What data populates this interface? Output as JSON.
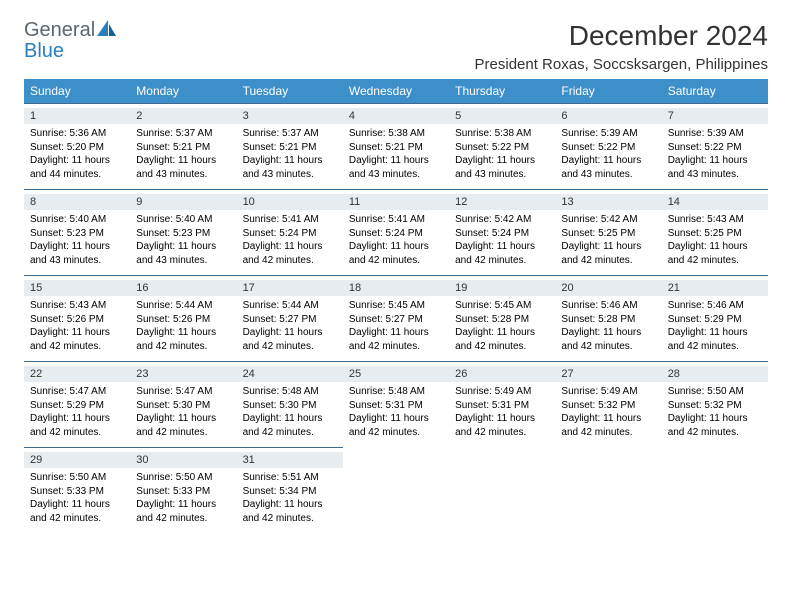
{
  "logo": {
    "general": "General",
    "blue": "Blue"
  },
  "title": {
    "month": "December 2024",
    "location": "President Roxas, Soccsksargen, Philippines"
  },
  "colors": {
    "header_bg": "#3d8fc9",
    "header_text": "#ffffff",
    "daynum_bg": "#e6ecf0",
    "row_border": "#3d6a8f",
    "logo_gray": "#5a6770",
    "logo_blue": "#2a7fbf"
  },
  "weekdays": [
    "Sunday",
    "Monday",
    "Tuesday",
    "Wednesday",
    "Thursday",
    "Friday",
    "Saturday"
  ],
  "days": {
    "1": {
      "sunrise": "5:36 AM",
      "sunset": "5:20 PM",
      "daylight": "11 hours and 44 minutes."
    },
    "2": {
      "sunrise": "5:37 AM",
      "sunset": "5:21 PM",
      "daylight": "11 hours and 43 minutes."
    },
    "3": {
      "sunrise": "5:37 AM",
      "sunset": "5:21 PM",
      "daylight": "11 hours and 43 minutes."
    },
    "4": {
      "sunrise": "5:38 AM",
      "sunset": "5:21 PM",
      "daylight": "11 hours and 43 minutes."
    },
    "5": {
      "sunrise": "5:38 AM",
      "sunset": "5:22 PM",
      "daylight": "11 hours and 43 minutes."
    },
    "6": {
      "sunrise": "5:39 AM",
      "sunset": "5:22 PM",
      "daylight": "11 hours and 43 minutes."
    },
    "7": {
      "sunrise": "5:39 AM",
      "sunset": "5:22 PM",
      "daylight": "11 hours and 43 minutes."
    },
    "8": {
      "sunrise": "5:40 AM",
      "sunset": "5:23 PM",
      "daylight": "11 hours and 43 minutes."
    },
    "9": {
      "sunrise": "5:40 AM",
      "sunset": "5:23 PM",
      "daylight": "11 hours and 43 minutes."
    },
    "10": {
      "sunrise": "5:41 AM",
      "sunset": "5:24 PM",
      "daylight": "11 hours and 42 minutes."
    },
    "11": {
      "sunrise": "5:41 AM",
      "sunset": "5:24 PM",
      "daylight": "11 hours and 42 minutes."
    },
    "12": {
      "sunrise": "5:42 AM",
      "sunset": "5:24 PM",
      "daylight": "11 hours and 42 minutes."
    },
    "13": {
      "sunrise": "5:42 AM",
      "sunset": "5:25 PM",
      "daylight": "11 hours and 42 minutes."
    },
    "14": {
      "sunrise": "5:43 AM",
      "sunset": "5:25 PM",
      "daylight": "11 hours and 42 minutes."
    },
    "15": {
      "sunrise": "5:43 AM",
      "sunset": "5:26 PM",
      "daylight": "11 hours and 42 minutes."
    },
    "16": {
      "sunrise": "5:44 AM",
      "sunset": "5:26 PM",
      "daylight": "11 hours and 42 minutes."
    },
    "17": {
      "sunrise": "5:44 AM",
      "sunset": "5:27 PM",
      "daylight": "11 hours and 42 minutes."
    },
    "18": {
      "sunrise": "5:45 AM",
      "sunset": "5:27 PM",
      "daylight": "11 hours and 42 minutes."
    },
    "19": {
      "sunrise": "5:45 AM",
      "sunset": "5:28 PM",
      "daylight": "11 hours and 42 minutes."
    },
    "20": {
      "sunrise": "5:46 AM",
      "sunset": "5:28 PM",
      "daylight": "11 hours and 42 minutes."
    },
    "21": {
      "sunrise": "5:46 AM",
      "sunset": "5:29 PM",
      "daylight": "11 hours and 42 minutes."
    },
    "22": {
      "sunrise": "5:47 AM",
      "sunset": "5:29 PM",
      "daylight": "11 hours and 42 minutes."
    },
    "23": {
      "sunrise": "5:47 AM",
      "sunset": "5:30 PM",
      "daylight": "11 hours and 42 minutes."
    },
    "24": {
      "sunrise": "5:48 AM",
      "sunset": "5:30 PM",
      "daylight": "11 hours and 42 minutes."
    },
    "25": {
      "sunrise": "5:48 AM",
      "sunset": "5:31 PM",
      "daylight": "11 hours and 42 minutes."
    },
    "26": {
      "sunrise": "5:49 AM",
      "sunset": "5:31 PM",
      "daylight": "11 hours and 42 minutes."
    },
    "27": {
      "sunrise": "5:49 AM",
      "sunset": "5:32 PM",
      "daylight": "11 hours and 42 minutes."
    },
    "28": {
      "sunrise": "5:50 AM",
      "sunset": "5:32 PM",
      "daylight": "11 hours and 42 minutes."
    },
    "29": {
      "sunrise": "5:50 AM",
      "sunset": "5:33 PM",
      "daylight": "11 hours and 42 minutes."
    },
    "30": {
      "sunrise": "5:50 AM",
      "sunset": "5:33 PM",
      "daylight": "11 hours and 42 minutes."
    },
    "31": {
      "sunrise": "5:51 AM",
      "sunset": "5:34 PM",
      "daylight": "11 hours and 42 minutes."
    }
  },
  "labels": {
    "sunrise": "Sunrise: ",
    "sunset": "Sunset: ",
    "daylight": "Daylight: "
  },
  "layout": {
    "weeks": [
      [
        1,
        2,
        3,
        4,
        5,
        6,
        7
      ],
      [
        8,
        9,
        10,
        11,
        12,
        13,
        14
      ],
      [
        15,
        16,
        17,
        18,
        19,
        20,
        21
      ],
      [
        22,
        23,
        24,
        25,
        26,
        27,
        28
      ],
      [
        29,
        30,
        31,
        null,
        null,
        null,
        null
      ]
    ]
  }
}
